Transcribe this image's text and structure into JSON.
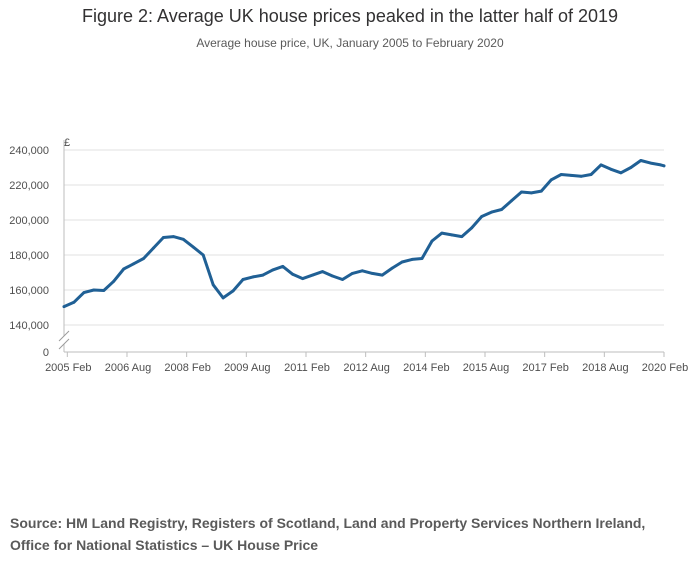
{
  "header": {
    "title": "Figure 2: Average UK house prices peaked in the latter half of 2019",
    "subtitle": "Average house price, UK, January 2005 to February 2020"
  },
  "footer": {
    "source": "Source: HM Land Registry, Registers of Scotland, Land and Property Services Northern Ireland, Office for National Statistics – UK House Price"
  },
  "colors": {
    "line": "#206095",
    "grid": "#e2e2e2",
    "axis": "#bebebe",
    "text": "#323132"
  },
  "chart_data": {
    "type": "line",
    "title": "Figure 2: Average UK house prices peaked in the latter half of 2019",
    "subtitle": "Average house price, UK, January 2005 to February 2020",
    "ylabel": "£",
    "xlabel": "",
    "ylim": [
      140000,
      240000
    ],
    "y_axis_break": true,
    "y_ticks": [
      0,
      140000,
      160000,
      180000,
      200000,
      220000,
      240000
    ],
    "y_tick_labels": [
      "0",
      "140,000",
      "160,000",
      "180,000",
      "200,000",
      "220,000",
      "240,000"
    ],
    "x_tick_labels": [
      "2005 Feb",
      "2006 Aug",
      "2008 Feb",
      "2009 Aug",
      "2011 Feb",
      "2012 Aug",
      "2014 Feb",
      "2015 Aug",
      "2017 Feb",
      "2018 Aug",
      "2020 Feb"
    ],
    "grid": true,
    "series": [
      {
        "name": "",
        "x": [
          "2005-01",
          "2005-04",
          "2005-07",
          "2005-10",
          "2006-01",
          "2006-04",
          "2006-07",
          "2006-10",
          "2007-01",
          "2007-04",
          "2007-07",
          "2007-10",
          "2008-01",
          "2008-04",
          "2008-07",
          "2008-10",
          "2009-01",
          "2009-04",
          "2009-07",
          "2009-10",
          "2010-01",
          "2010-04",
          "2010-07",
          "2010-10",
          "2011-01",
          "2011-04",
          "2011-07",
          "2011-10",
          "2012-01",
          "2012-04",
          "2012-07",
          "2012-10",
          "2013-01",
          "2013-04",
          "2013-07",
          "2013-10",
          "2014-01",
          "2014-04",
          "2014-07",
          "2014-10",
          "2015-01",
          "2015-04",
          "2015-07",
          "2015-10",
          "2016-01",
          "2016-04",
          "2016-07",
          "2016-10",
          "2017-01",
          "2017-04",
          "2017-07",
          "2017-10",
          "2018-01",
          "2018-04",
          "2018-07",
          "2018-10",
          "2019-01",
          "2019-04",
          "2019-07",
          "2019-10",
          "2020-01",
          "2020-02"
        ],
        "values": [
          150500,
          153000,
          158500,
          160000,
          159700,
          165000,
          172000,
          175000,
          178000,
          184000,
          190000,
          190500,
          189000,
          184500,
          180000,
          163000,
          155500,
          159500,
          166000,
          167500,
          168500,
          171500,
          173500,
          169000,
          166500,
          168500,
          170500,
          168000,
          166000,
          169500,
          171000,
          169500,
          168500,
          172500,
          176000,
          177500,
          178000,
          188000,
          192500,
          191500,
          190500,
          195500,
          202000,
          204500,
          206000,
          211000,
          216000,
          215500,
          216500,
          223000,
          226000,
          225500,
          225000,
          226000,
          231500,
          229000,
          227000,
          230000,
          234000,
          232500,
          231500,
          231000
        ]
      }
    ]
  }
}
